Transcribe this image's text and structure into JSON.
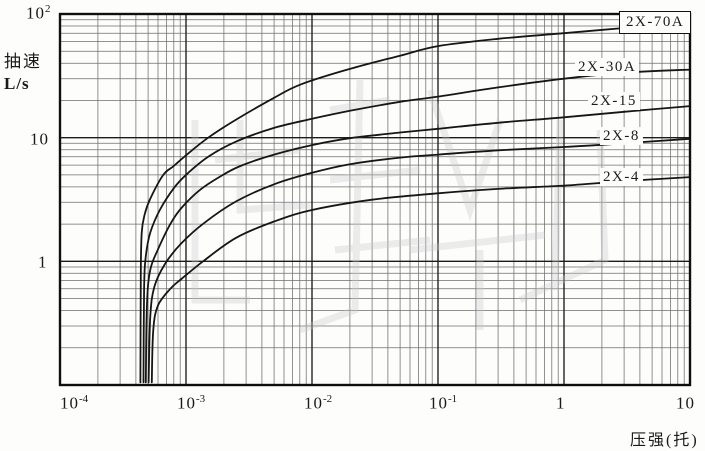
{
  "axes": {
    "y_title_line1": "抽速",
    "y_title_line2": "L/s",
    "x_title": "压强(托)",
    "y_ticks": [
      {
        "base": "10",
        "exp": "2"
      },
      {
        "base": "10",
        "exp": ""
      },
      {
        "base": "1",
        "exp": ""
      }
    ],
    "x_ticks": [
      {
        "base": "10",
        "exp": "-4"
      },
      {
        "base": "10",
        "exp": "-3"
      },
      {
        "base": "10",
        "exp": "-2"
      },
      {
        "base": "10",
        "exp": "-1"
      },
      {
        "base": "1",
        "exp": ""
      },
      {
        "base": "10",
        "exp": ""
      }
    ]
  },
  "curve_labels": [
    {
      "text": "2X-70A",
      "boxed": true
    },
    {
      "text": "2X-30A",
      "boxed": false
    },
    {
      "text": "2X-15",
      "boxed": false
    },
    {
      "text": "2X-8",
      "boxed": false
    },
    {
      "text": "2X-4",
      "boxed": false
    }
  ],
  "colors": {
    "line": "#161616",
    "grid_minor": "#4a4a4a",
    "grid_major": "#1c1c1c",
    "frame": "#0f0f0f",
    "background": "#fdfdfc",
    "watermark": "#c9c9c9"
  },
  "chart_data": {
    "type": "line",
    "x_scale": "log",
    "y_scale": "log",
    "title": "",
    "xlabel": "压强(托)",
    "ylabel": "抽速 L/s",
    "xlim": [
      0.0001,
      10
    ],
    "ylim": [
      0.1,
      100
    ],
    "grid": "log-log full minor grid",
    "legend_position": "labels at right side of curves",
    "series": [
      {
        "name": "2X-70A",
        "points": [
          [
            0.000435,
            0.105
          ],
          [
            0.000438,
            0.8
          ],
          [
            0.000445,
            1.7
          ],
          [
            0.00047,
            2.4
          ],
          [
            0.00052,
            3.2
          ],
          [
            0.00066,
            5.0
          ],
          [
            0.0008,
            5.9
          ],
          [
            0.001,
            7.2
          ],
          [
            0.0015,
            10
          ],
          [
            0.0025,
            14
          ],
          [
            0.005,
            21
          ],
          [
            0.0082,
            27
          ],
          [
            0.02,
            36
          ],
          [
            0.05,
            46
          ],
          [
            0.1,
            55
          ],
          [
            0.3,
            63
          ],
          [
            1,
            70
          ],
          [
            3,
            77
          ],
          [
            10,
            84
          ]
        ]
      },
      {
        "name": "2X-30A",
        "points": [
          [
            0.00046,
            0.105
          ],
          [
            0.000465,
            0.6
          ],
          [
            0.00048,
            1.1
          ],
          [
            0.00052,
            1.7
          ],
          [
            0.00062,
            2.6
          ],
          [
            0.0008,
            3.9
          ],
          [
            0.001,
            5.0
          ],
          [
            0.0015,
            7.0
          ],
          [
            0.0025,
            9.3
          ],
          [
            0.005,
            12
          ],
          [
            0.01,
            14.2
          ],
          [
            0.02,
            16.5
          ],
          [
            0.05,
            19.5
          ],
          [
            0.1,
            21.5
          ],
          [
            0.3,
            25.5
          ],
          [
            1,
            30
          ],
          [
            3,
            33.5
          ],
          [
            10,
            35.5
          ]
        ]
      },
      {
        "name": "2X-15",
        "points": [
          [
            0.00048,
            0.105
          ],
          [
            0.00049,
            0.45
          ],
          [
            0.00052,
            0.85
          ],
          [
            0.0006,
            1.25
          ],
          [
            0.00075,
            2.0
          ],
          [
            0.00092,
            2.7
          ],
          [
            0.0013,
            3.8
          ],
          [
            0.0019,
            4.9
          ],
          [
            0.0027,
            5.9
          ],
          [
            0.005,
            7.3
          ],
          [
            0.01,
            8.7
          ],
          [
            0.02,
            9.9
          ],
          [
            0.05,
            11
          ],
          [
            0.1,
            11.8
          ],
          [
            0.3,
            13.2
          ],
          [
            1,
            14.6
          ],
          [
            3,
            16.2
          ],
          [
            10,
            18
          ]
        ]
      },
      {
        "name": "2X-8",
        "points": [
          [
            0.000505,
            0.105
          ],
          [
            0.00052,
            0.35
          ],
          [
            0.00056,
            0.62
          ],
          [
            0.00068,
            0.95
          ],
          [
            0.00092,
            1.4
          ],
          [
            0.0014,
            2.05
          ],
          [
            0.0025,
            3.05
          ],
          [
            0.005,
            4.2
          ],
          [
            0.01,
            5.2
          ],
          [
            0.02,
            6.1
          ],
          [
            0.05,
            6.9
          ],
          [
            0.1,
            7.3
          ],
          [
            0.3,
            7.9
          ],
          [
            1,
            8.4
          ],
          [
            3,
            9.0
          ],
          [
            10,
            9.8
          ]
        ]
      },
      {
        "name": "2X-4",
        "points": [
          [
            0.000535,
            0.105
          ],
          [
            0.00055,
            0.28
          ],
          [
            0.0006,
            0.44
          ],
          [
            0.00075,
            0.6
          ],
          [
            0.00092,
            0.72
          ],
          [
            0.0014,
            1.02
          ],
          [
            0.0025,
            1.55
          ],
          [
            0.005,
            2.1
          ],
          [
            0.01,
            2.6
          ],
          [
            0.03,
            3.15
          ],
          [
            0.1,
            3.55
          ],
          [
            0.3,
            3.85
          ],
          [
            1,
            4.1
          ],
          [
            3,
            4.45
          ],
          [
            10,
            4.8
          ]
        ]
      }
    ]
  }
}
